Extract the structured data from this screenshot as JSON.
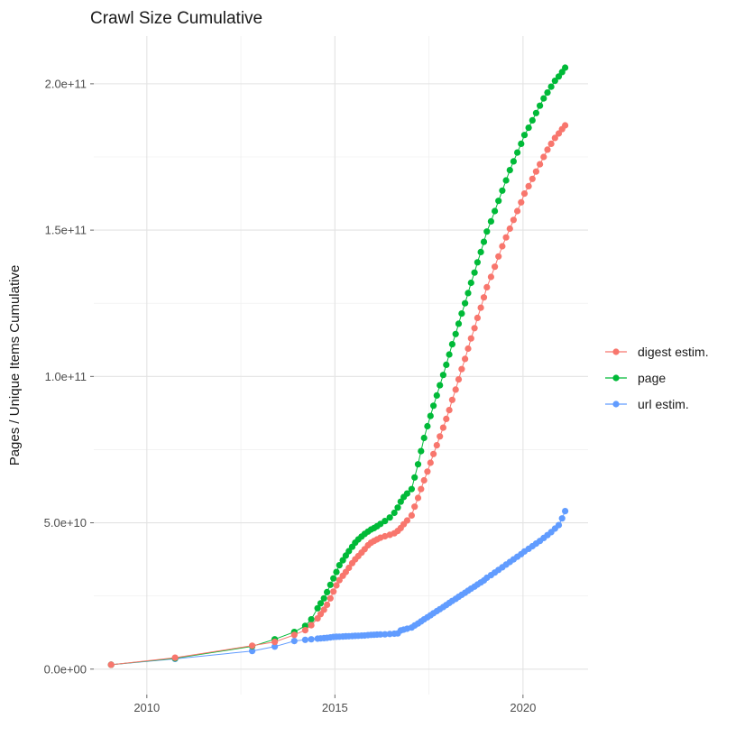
{
  "title": "Crawl Size Cumulative",
  "chart_data": {
    "type": "scatter",
    "title": "Crawl Size Cumulative",
    "xlabel": "",
    "ylabel": "Pages / Unique Items Cumulative",
    "legend_position": "right",
    "grid": true,
    "background": "#ffffff",
    "grid_major_color": "#e3e3e3",
    "grid_minor_color": "#f0f0f0",
    "axis_text_color": "#4d4d4d",
    "value_scale": 1000000000.0,
    "xlim": [
      2008.59,
      2021.73
    ],
    "ylim": [
      -8.7,
      216.3
    ],
    "x_ticks": {
      "major": [
        2010,
        2015,
        2020
      ],
      "minor": [
        2012.5,
        2017.5
      ],
      "labels": [
        "2010",
        "2015",
        "2020"
      ]
    },
    "y_ticks": {
      "major": [
        0,
        50,
        100,
        150,
        200
      ],
      "minor": [
        25,
        75,
        125,
        175
      ],
      "labels": [
        "0.0e+00",
        "5.0e+10",
        "1.0e+11",
        "1.5e+11",
        "2.0e+11"
      ]
    },
    "x": [
      2009.05,
      2010.75,
      2012.8,
      2013.4,
      2013.92,
      2014.21,
      2014.37,
      2014.54,
      2014.62,
      2014.71,
      2014.79,
      2014.88,
      2014.96,
      2015.04,
      2015.12,
      2015.21,
      2015.29,
      2015.37,
      2015.46,
      2015.54,
      2015.62,
      2015.71,
      2015.79,
      2015.88,
      2015.96,
      2016.04,
      2016.12,
      2016.21,
      2016.33,
      2016.46,
      2016.58,
      2016.67,
      2016.75,
      2016.83,
      2016.92,
      2017.04,
      2017.12,
      2017.21,
      2017.29,
      2017.37,
      2017.46,
      2017.54,
      2017.62,
      2017.71,
      2017.79,
      2017.88,
      2017.96,
      2018.04,
      2018.12,
      2018.21,
      2018.29,
      2018.37,
      2018.46,
      2018.54,
      2018.62,
      2018.71,
      2018.79,
      2018.88,
      2018.96,
      2019.04,
      2019.15,
      2019.25,
      2019.35,
      2019.45,
      2019.55,
      2019.65,
      2019.75,
      2019.85,
      2019.95,
      2020.04,
      2020.15,
      2020.25,
      2020.35,
      2020.45,
      2020.55,
      2020.65,
      2020.75,
      2020.85,
      2020.95,
      2021.04,
      2021.12
    ],
    "series": [
      {
        "name": "digest estim.",
        "color": "#F8766D",
        "values": [
          1.5,
          3.9,
          8.0,
          9.3,
          11.7,
          13.3,
          15.0,
          17.3,
          18.8,
          20.3,
          22.0,
          24.2,
          26.5,
          28.6,
          30.4,
          31.9,
          33.2,
          34.6,
          36.2,
          37.5,
          38.6,
          39.8,
          41.0,
          42.3,
          43.2,
          43.8,
          44.3,
          44.9,
          45.4,
          45.9,
          46.4,
          47.2,
          48.2,
          49.5,
          50.8,
          52.5,
          55.5,
          58.5,
          61.5,
          64.5,
          67.5,
          70.5,
          73.5,
          76.5,
          79.5,
          82.5,
          85.5,
          88.5,
          92.0,
          95.5,
          99.0,
          102.5,
          106.0,
          109.5,
          113.0,
          116.5,
          120.0,
          123.5,
          127.0,
          130.5,
          134.0,
          137.5,
          141.0,
          144.5,
          147.5,
          150.5,
          153.5,
          156.5,
          159.5,
          162.5,
          165.0,
          167.5,
          170.0,
          172.5,
          175.0,
          177.5,
          179.5,
          181.5,
          183.0,
          184.5,
          185.8
        ]
      },
      {
        "name": "page",
        "color": "#00BA38",
        "values": [
          1.5,
          3.7,
          7.8,
          10.2,
          12.7,
          14.8,
          17.0,
          20.8,
          22.5,
          24.2,
          26.3,
          28.8,
          31.0,
          33.2,
          35.5,
          37.2,
          38.8,
          40.3,
          41.8,
          43.2,
          44.3,
          45.3,
          46.2,
          47.0,
          47.7,
          48.2,
          48.8,
          49.6,
          50.6,
          51.8,
          53.4,
          55.2,
          57.2,
          58.8,
          60.0,
          61.5,
          65.5,
          70.0,
          74.5,
          79.0,
          83.0,
          86.5,
          90.0,
          93.5,
          97.0,
          100.5,
          104.0,
          107.5,
          111.0,
          114.5,
          118.0,
          121.5,
          125.0,
          128.5,
          132.0,
          135.5,
          139.0,
          142.5,
          146.0,
          149.5,
          153.0,
          156.5,
          160.0,
          163.5,
          167.0,
          170.5,
          173.5,
          176.5,
          179.5,
          182.5,
          185.0,
          187.5,
          190.0,
          192.5,
          195.0,
          197.0,
          199.0,
          201.0,
          202.5,
          204.0,
          205.5
        ]
      },
      {
        "name": "url estim.",
        "color": "#619CFF",
        "values": [
          1.5,
          3.5,
          6.2,
          7.7,
          9.6,
          10.0,
          10.2,
          10.4,
          10.5,
          10.6,
          10.7,
          10.85,
          11.0,
          11.05,
          11.1,
          11.15,
          11.2,
          11.25,
          11.3,
          11.35,
          11.4,
          11.45,
          11.5,
          11.6,
          11.7,
          11.75,
          11.8,
          11.85,
          11.9,
          12.0,
          12.1,
          12.2,
          13.2,
          13.5,
          13.8,
          14.2,
          14.9,
          15.6,
          16.3,
          17.0,
          17.7,
          18.4,
          19.1,
          19.8,
          20.5,
          21.2,
          21.9,
          22.6,
          23.3,
          24.0,
          24.7,
          25.4,
          26.1,
          26.8,
          27.5,
          28.2,
          28.9,
          29.6,
          30.3,
          31.2,
          32.1,
          33.0,
          33.9,
          34.8,
          35.7,
          36.6,
          37.5,
          38.4,
          39.3,
          40.2,
          41.1,
          42.0,
          42.9,
          43.8,
          44.8,
          45.8,
          46.8,
          48.0,
          49.2,
          51.5,
          54.0
        ]
      }
    ]
  }
}
